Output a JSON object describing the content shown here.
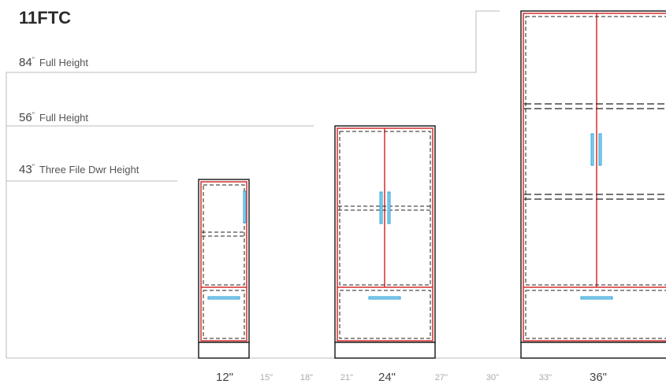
{
  "title": "11FTC",
  "height_markers": [
    {
      "value": "84",
      "unit": "\"",
      "label": "Full Height"
    },
    {
      "value": "56",
      "unit": "\"",
      "label": "Full Height"
    },
    {
      "value": "43",
      "unit": "\"",
      "label": "Three File Dwr Height"
    }
  ],
  "width_scale": [
    {
      "label": "12\"",
      "major": true
    },
    {
      "label": "15\"",
      "major": false
    },
    {
      "label": "18\"",
      "major": false
    },
    {
      "label": "21\"",
      "major": false
    },
    {
      "label": "24\"",
      "major": true
    },
    {
      "label": "27\"",
      "major": false
    },
    {
      "label": "30\"",
      "major": false
    },
    {
      "label": "33\"",
      "major": false
    },
    {
      "label": "36\"",
      "major": true
    }
  ],
  "colors": {
    "door_outline": "#d32f2f",
    "handle": "#29a3d6",
    "frame": "#222222",
    "guide_line": "#bbbbbb"
  },
  "cabinets": [
    {
      "width": "12\"",
      "height": "43\"",
      "doors": 1
    },
    {
      "width": "24\"",
      "height": "56\"",
      "doors": 2
    },
    {
      "width": "36\"",
      "height": "84\"",
      "doors": 2
    }
  ]
}
